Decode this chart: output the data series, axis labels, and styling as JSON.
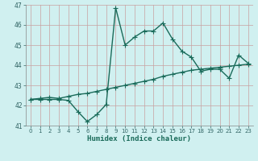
{
  "xlabel": "Humidex (Indice chaleur)",
  "ylabel": "",
  "bg_color": "#d0f0f0",
  "grid_color": "#c8a0a0",
  "line_color": "#1a6b5a",
  "xlim": [
    -0.5,
    23.5
  ],
  "ylim": [
    41,
    47
  ],
  "yticks": [
    41,
    42,
    43,
    44,
    45,
    46,
    47
  ],
  "xticks": [
    0,
    1,
    2,
    3,
    4,
    5,
    6,
    7,
    8,
    9,
    10,
    11,
    12,
    13,
    14,
    15,
    16,
    17,
    18,
    19,
    20,
    21,
    22,
    23
  ],
  "line1_x": [
    0,
    1,
    2,
    3,
    4,
    5,
    6,
    7,
    8,
    9,
    10,
    11,
    12,
    13,
    14,
    15,
    16,
    17,
    18,
    19,
    20,
    21,
    22,
    23
  ],
  "line1_y": [
    42.3,
    42.3,
    42.3,
    42.3,
    42.25,
    41.7,
    41.2,
    41.55,
    42.05,
    46.85,
    45.0,
    45.4,
    45.7,
    45.7,
    46.1,
    45.3,
    44.7,
    44.4,
    43.7,
    43.8,
    43.8,
    43.35,
    44.5,
    44.1
  ],
  "line2_x": [
    0,
    1,
    2,
    3,
    4,
    5,
    6,
    7,
    8,
    9,
    10,
    11,
    12,
    13,
    14,
    15,
    16,
    17,
    18,
    19,
    20,
    21,
    22,
    23
  ],
  "line2_y": [
    42.3,
    42.35,
    42.4,
    42.35,
    42.45,
    42.55,
    42.6,
    42.7,
    42.8,
    42.9,
    43.0,
    43.1,
    43.2,
    43.3,
    43.45,
    43.55,
    43.65,
    43.75,
    43.8,
    43.85,
    43.9,
    43.95,
    44.0,
    44.05
  ],
  "marker": "+",
  "markersize": 4,
  "linewidth": 1.0
}
